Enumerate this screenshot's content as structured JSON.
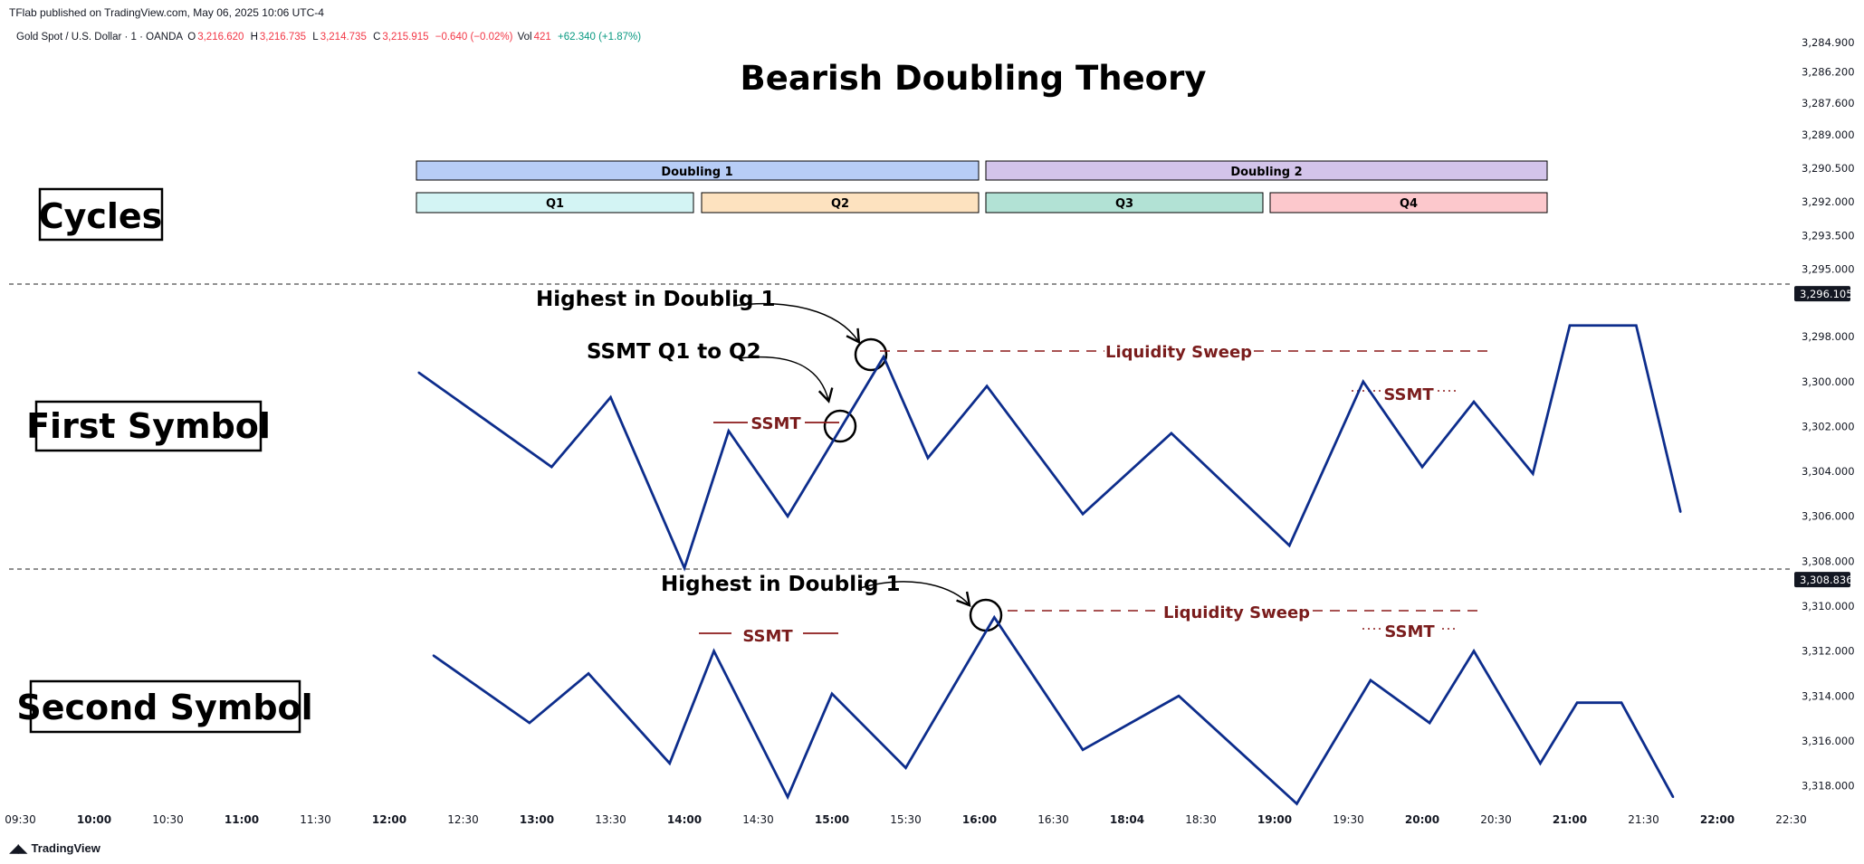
{
  "header": {
    "published_by": "TFlab published on TradingView.com, May 06, 2025 10:06 UTC-4",
    "symbol": "Gold Spot / U.S. Dollar · 1 · OANDA",
    "o_label": "O",
    "o_value": "3,216.620",
    "h_label": "H",
    "h_value": "3,216.735",
    "l_label": "L",
    "l_value": "3,214.735",
    "c_label": "C",
    "c_value": "3,215.915",
    "change": "−0.640 (−0.02%)",
    "vol_label": "Vol",
    "vol_value": "421",
    "vol_change": "+62.340 (+1.87%)"
  },
  "footer": {
    "brand": "TradingView",
    "logo_icon": "tradingview-logo-icon"
  },
  "chart_data": {
    "type": "line",
    "title": "Bearish Doubling Theory",
    "x_ticks": [
      "09:30",
      "10:00",
      "10:30",
      "11:00",
      "11:30",
      "12:00",
      "12:30",
      "13:00",
      "13:30",
      "14:00",
      "14:30",
      "15:00",
      "15:30",
      "16:00",
      "16:30",
      "18:04",
      "18:30",
      "19:00",
      "19:30",
      "20:00",
      "20:30",
      "21:00",
      "21:30",
      "22:00",
      "22:30"
    ],
    "bold_x_ticks": [
      "10:00",
      "11:00",
      "12:00",
      "13:00",
      "14:00",
      "15:00",
      "16:00",
      "18:04",
      "19:00",
      "20:00",
      "21:00",
      "22:00"
    ],
    "y_axis": {
      "ticks": [
        "3,284.900",
        "3,286.200",
        "3,287.600",
        "3,289.000",
        "3,290.500",
        "3,292.000",
        "3,293.500",
        "3,295.000",
        "3,298.000",
        "3,300.000",
        "3,302.000",
        "3,304.000",
        "3,306.000",
        "3,308.000",
        "3,310.000",
        "3,312.000",
        "3,314.000",
        "3,316.000",
        "3,318.000"
      ],
      "badges": [
        "3,296.105",
        "3,308.836"
      ],
      "ylim": [
        3284.0,
        3319.0
      ],
      "inverted": true
    },
    "cycles": {
      "label": "Cycles",
      "doublings": [
        {
          "label": "Doubling 1",
          "color": "#b7cdf6"
        },
        {
          "label": "Doubling 2",
          "color": "#d3c4ea"
        }
      ],
      "quarters": [
        {
          "label": "Q1",
          "color": "#d3f4f4"
        },
        {
          "label": "Q2",
          "color": "#fde2bf"
        },
        {
          "label": "Q3",
          "color": "#b2e2d5"
        },
        {
          "label": "Q4",
          "color": "#fcc8cc"
        }
      ]
    },
    "panels": [
      {
        "label": "First Symbol",
        "line_color": "#0d2d8c",
        "x": [
          12.2,
          13.1,
          13.5,
          14.0,
          14.3,
          14.7,
          15.35,
          15.65,
          16.05,
          16.7,
          17.3,
          18.1,
          18.6,
          19.0,
          19.35,
          19.75,
          20.0,
          20.45,
          20.75
        ],
        "y": [
          3299.6,
          3303.8,
          3300.7,
          3308.3,
          3302.2,
          3306.0,
          3298.9,
          3303.4,
          3300.2,
          3305.9,
          3302.3,
          3307.3,
          3300.0,
          3303.8,
          3300.9,
          3304.1,
          3297.5,
          3297.5,
          3305.8
        ],
        "annotations": [
          {
            "text": "Highest in Doublig 1",
            "kind": "arrow"
          },
          {
            "text": "SSMT Q1 to Q2",
            "kind": "arrow"
          },
          {
            "text": "SSMT",
            "kind": "solid-line"
          },
          {
            "text": "Liquidity Sweep",
            "kind": "dashed-line"
          },
          {
            "text": "SSMT",
            "kind": "dotted-line"
          }
        ]
      },
      {
        "label": "Second Symbol",
        "line_color": "#0d2d8c",
        "x": [
          12.3,
          12.95,
          13.35,
          13.9,
          14.2,
          14.7,
          15.0,
          15.5,
          16.1,
          16.7,
          17.35,
          18.15,
          18.65,
          19.05,
          19.35,
          19.8,
          20.05,
          20.35,
          20.7
        ],
        "y": [
          3312.2,
          3315.2,
          3313.0,
          3317.0,
          3312.0,
          3318.5,
          3313.9,
          3317.2,
          3310.5,
          3316.4,
          3314.0,
          3318.8,
          3313.3,
          3315.2,
          3312.0,
          3317.0,
          3314.3,
          3314.3,
          3318.5
        ],
        "annotations": [
          {
            "text": "Highest in Doublig 1",
            "kind": "arrow"
          },
          {
            "text": "SSMT",
            "kind": "solid-line"
          },
          {
            "text": "Liquidity Sweep",
            "kind": "dashed-line"
          },
          {
            "text": "SSMT",
            "kind": "dotted-line"
          }
        ]
      }
    ],
    "grid": false
  }
}
